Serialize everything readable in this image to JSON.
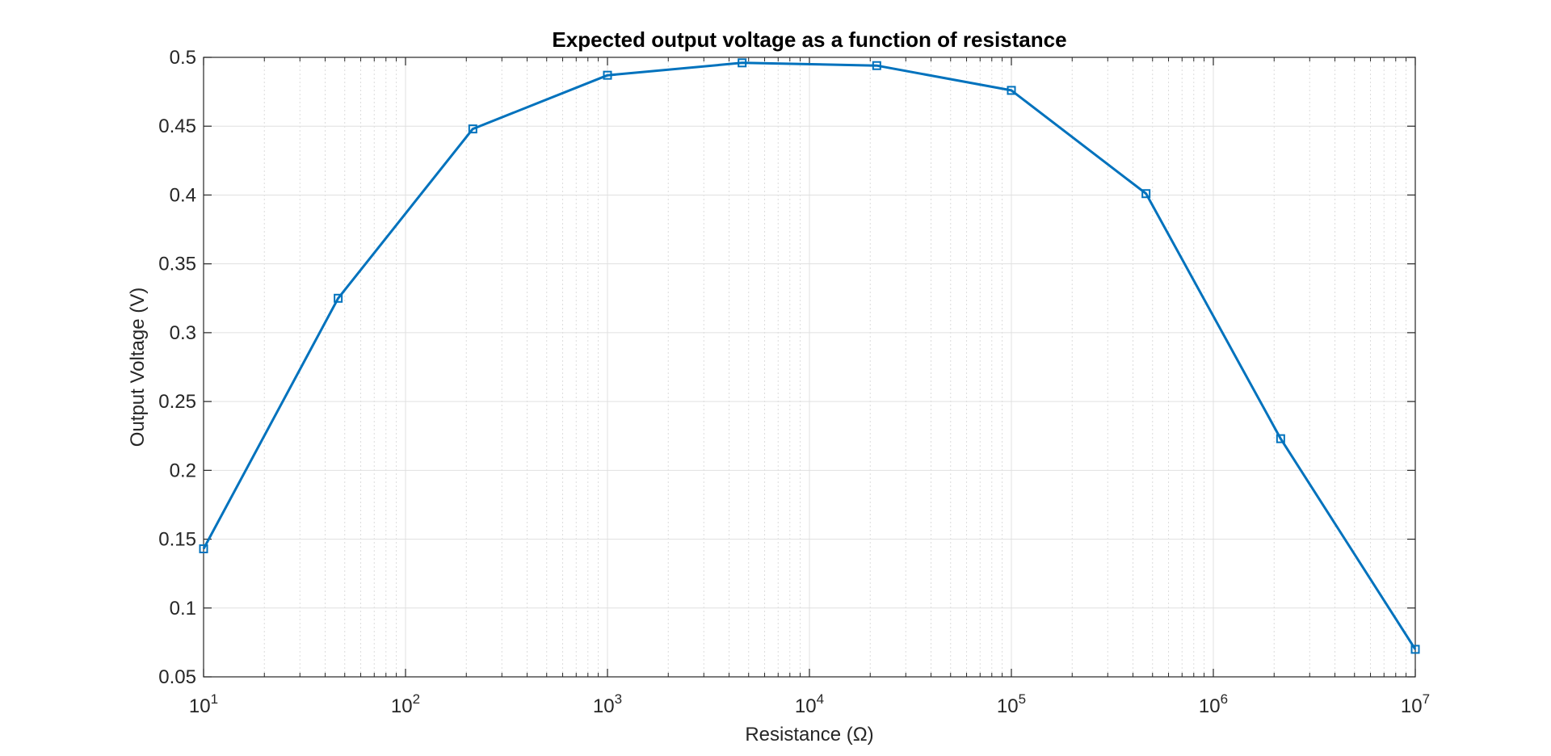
{
  "chart_data": {
    "type": "line",
    "title": "Expected output voltage as a function of resistance",
    "xlabel": "Resistance (Ω)",
    "ylabel": "Output Voltage (V)",
    "x_scale": "log",
    "xlim": [
      10,
      10000000
    ],
    "ylim": [
      0.05,
      0.5
    ],
    "x_tick_labels": [
      {
        "base": "10",
        "exp": "1",
        "value": 10
      },
      {
        "base": "10",
        "exp": "2",
        "value": 100
      },
      {
        "base": "10",
        "exp": "3",
        "value": 1000
      },
      {
        "base": "10",
        "exp": "4",
        "value": 10000
      },
      {
        "base": "10",
        "exp": "5",
        "value": 100000
      },
      {
        "base": "10",
        "exp": "6",
        "value": 1000000
      },
      {
        "base": "10",
        "exp": "7",
        "value": 10000000
      }
    ],
    "y_ticks": [
      "0.05",
      "0.1",
      "0.15",
      "0.2",
      "0.25",
      "0.3",
      "0.35",
      "0.4",
      "0.45",
      "0.5"
    ],
    "grid": true,
    "minor_grid": true,
    "marker": "square",
    "color": "#0072BD",
    "x": [
      10,
      46.4,
      215.4,
      1000,
      4642,
      21544,
      100000,
      464159,
      2154435,
      10000000
    ],
    "y": [
      0.143,
      0.325,
      0.448,
      0.487,
      0.496,
      0.494,
      0.476,
      0.401,
      0.223,
      0.07
    ]
  }
}
